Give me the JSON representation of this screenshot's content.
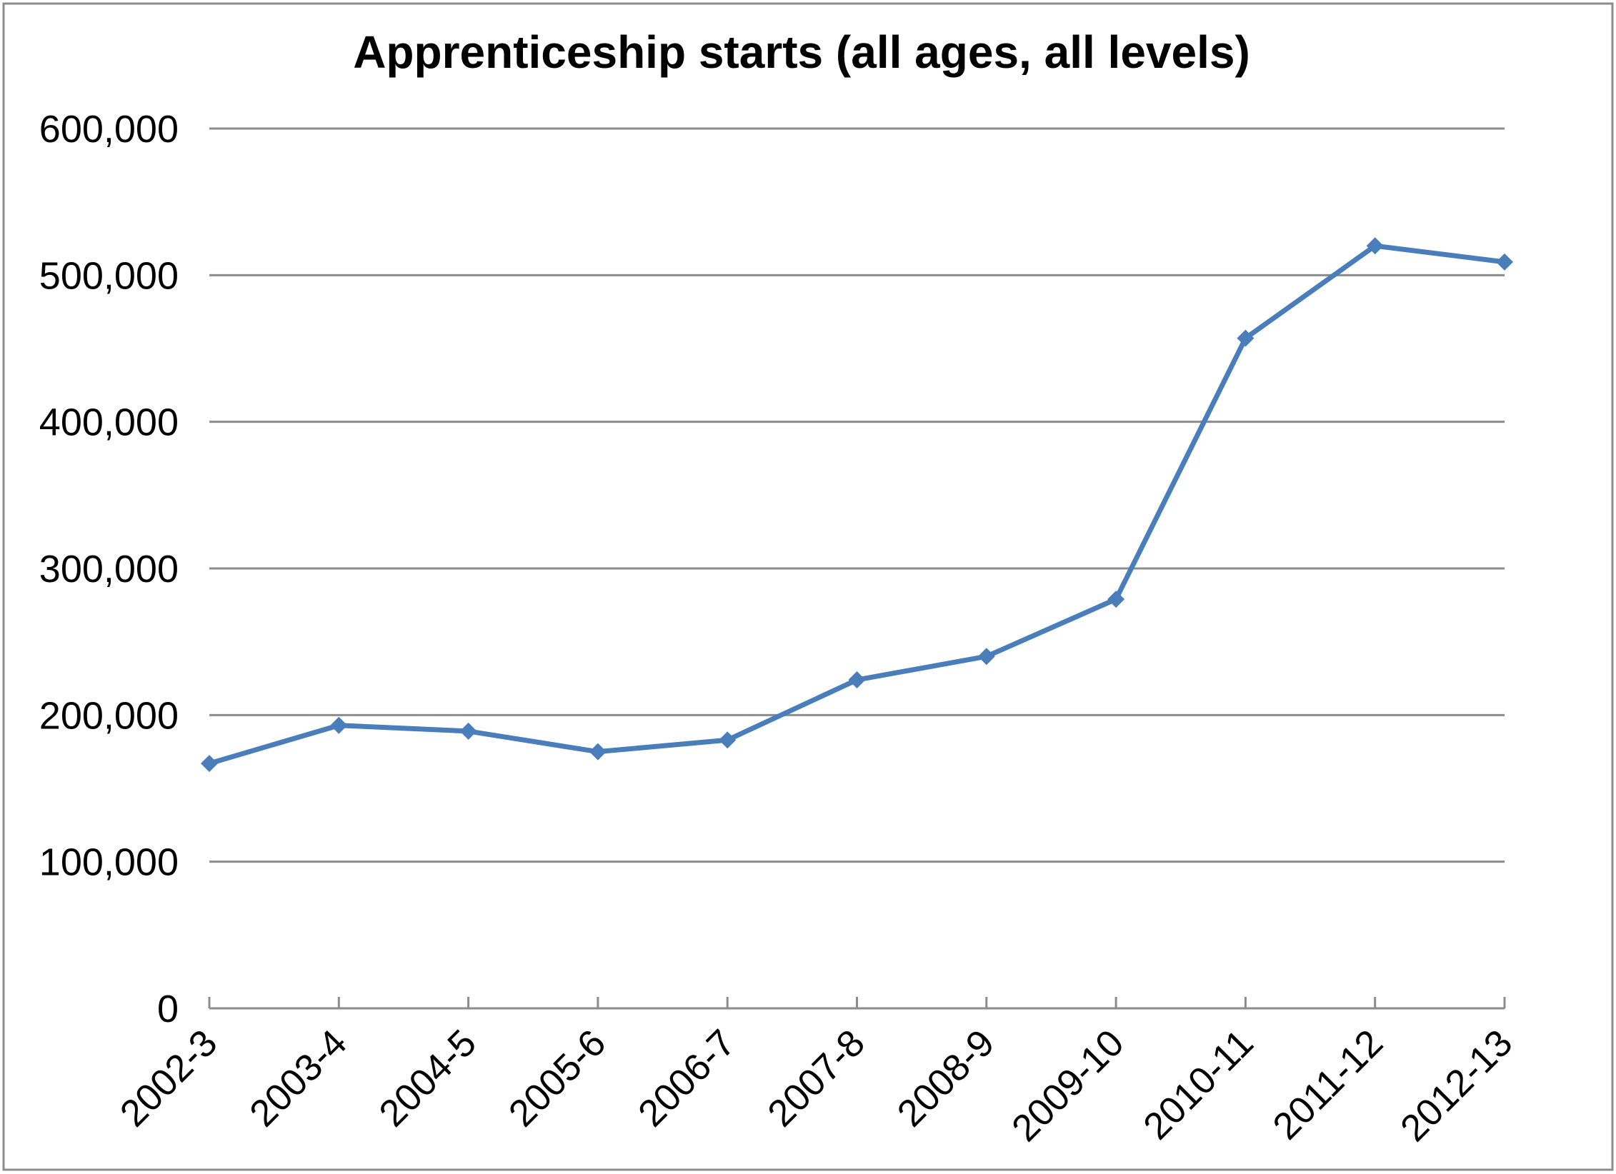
{
  "chart_data": {
    "type": "line",
    "title": "Apprenticeship starts (all ages, all levels)",
    "xlabel": "",
    "ylabel": "",
    "categories": [
      "2002-3",
      "2003-4",
      "2004-5",
      "2005-6",
      "2006-7",
      "2007-8",
      "2008-9",
      "2009-10",
      "2010-11",
      "2011-12",
      "2012-13"
    ],
    "series": [
      {
        "name": "Apprenticeship starts",
        "color": "#4a7ebb",
        "marker": "diamond",
        "values": [
          167000,
          193000,
          189000,
          175000,
          183000,
          224000,
          240000,
          279000,
          457000,
          520000,
          509000
        ]
      }
    ],
    "ylim": [
      0,
      600000
    ],
    "yticks": [
      0,
      100000,
      200000,
      300000,
      400000,
      500000,
      600000
    ],
    "ytick_labels": [
      "0",
      "100,000",
      "200,000",
      "300,000",
      "400,000",
      "500,000",
      "600,000"
    ],
    "grid": true,
    "legend": "none",
    "xtick_rotation": -45
  },
  "colors": {
    "line": "#4a7ebb",
    "grid": "#8c8c8c",
    "frame": "#8c8c8c",
    "text": "#000000",
    "background": "#ffffff"
  }
}
